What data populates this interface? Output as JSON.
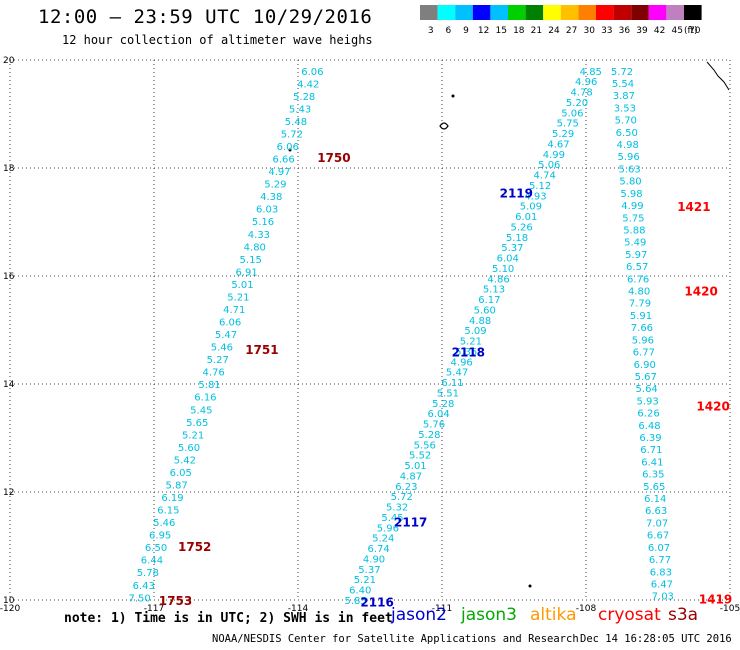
{
  "header": {
    "title": "12:00 – 23:59 UTC 10/29/2016",
    "subtitle": "12 hour collection of altimeter wave heighs"
  },
  "legend": {
    "colors": [
      "#7f7f7f",
      "#00ffff",
      "#00c0ff",
      "#0000ff",
      "#00c0ff",
      "#00d000",
      "#008000",
      "#ffff00",
      "#ffc000",
      "#ff8000",
      "#ff0000",
      "#c00000",
      "#800000",
      "#ff00ff",
      "#c080c0",
      "#000000"
    ],
    "labels": [
      "3",
      "6",
      "9",
      "12",
      "15",
      "18",
      "21",
      "24",
      "27",
      "30",
      "33",
      "36",
      "39",
      "42",
      "45",
      "70"
    ],
    "unit": "(ft)"
  },
  "footer": {
    "note": "note: 1) Time is in UTC; 2) SWH is in feet",
    "missions": [
      {
        "name": "jason2",
        "color": "#0000cc"
      },
      {
        "name": "jason3",
        "color": "#00aa00"
      },
      {
        "name": "altika",
        "color": "#ff9900"
      },
      {
        "name": "cryosat",
        "color": "#ff0000"
      },
      {
        "name": "s3a",
        "color": "#990000"
      }
    ],
    "credit": "NOAA/NESDIS Center for Satellite Applications and Research",
    "timestamp": "Dec 14 16:28:05 UTC 2016"
  },
  "chart_data": {
    "type": "scatter",
    "title": "12:00 – 23:59 UTC 10/29/2016",
    "subtitle": "12 hour collection of altimeter wave heighs",
    "xlim": [
      -120,
      -105
    ],
    "ylim": [
      10,
      20
    ],
    "x_ticks": [
      -120,
      -117,
      -114,
      -111,
      -108,
      -105
    ],
    "y_ticks": [
      10,
      12,
      14,
      16,
      18,
      20
    ],
    "x_tick_labels": [
      "-120",
      "-117",
      "-114",
      "-111",
      "-108",
      "-105"
    ],
    "y_tick_labels": [
      "10",
      "12",
      "14",
      "16",
      "18",
      "20"
    ],
    "grid": true,
    "value_color": "#00c0e0",
    "series": [
      {
        "mission": "s3a",
        "start": [
          -113.7,
          19.8
        ],
        "end": [
          -117.3,
          10.05
        ],
        "values": [
          "6.06",
          "4.42",
          "5.28",
          "5.43",
          "5.48",
          "5.72",
          "6.06",
          "6.66",
          "4.97",
          "5.29",
          "4.38",
          "6.03",
          "5.16",
          "4.33",
          "4.80",
          "5.15",
          "6.91",
          "5.01",
          "5.21",
          "4.71",
          "6.06",
          "5.47",
          "5.46",
          "5.27",
          "4.76",
          "5.81",
          "6.16",
          "5.45",
          "5.65",
          "5.21",
          "5.60",
          "5.42",
          "6.05",
          "5.87",
          "6.19",
          "6.15",
          "5.46",
          "6.95",
          "6.50",
          "6.44",
          "5.78",
          "6.43",
          "7.50"
        ],
        "passes": [
          {
            "id": "1750",
            "lon": -113.6,
            "lat": 18.2,
            "color": "#990000"
          },
          {
            "id": "1751",
            "lon": -115.1,
            "lat": 14.65,
            "color": "#990000"
          },
          {
            "id": "1752",
            "lon": -116.5,
            "lat": 11.0,
            "color": "#990000"
          },
          {
            "id": "1753",
            "lon": -116.9,
            "lat": 10.0,
            "color": "#990000"
          }
        ]
      },
      {
        "mission": "jason2",
        "start": [
          -107.9,
          19.8
        ],
        "end": [
          -112.8,
          10.0
        ],
        "values": [
          "4.85",
          "4.96",
          "4.78",
          "5.20",
          "5.06",
          "5.75",
          "5.29",
          "4.67",
          "4.99",
          "5.06",
          "4.74",
          "5.12",
          "4.93",
          "5.09",
          "6.01",
          "5.26",
          "5.18",
          "5.37",
          "6.04",
          "5.10",
          "4.86",
          "5.13",
          "6.17",
          "5.60",
          "4.88",
          "5.09",
          "5.21",
          "5.35",
          "4.96",
          "5.47",
          "6.11",
          "5.51",
          "5.28",
          "6.04",
          "5.76",
          "5.28",
          "5.56",
          "5.52",
          "5.01",
          "4.87",
          "6.23",
          "5.72",
          "5.32",
          "5.45",
          "5.96",
          "5.24",
          "6.74",
          "4.90",
          "5.37",
          "5.21",
          "6.40",
          "5.85"
        ],
        "passes": [
          {
            "id": "2119",
            "lon": -109.8,
            "lat": 17.55,
            "color": "#0000cc"
          },
          {
            "id": "2118",
            "lon": -110.8,
            "lat": 14.6,
            "color": "#0000cc"
          },
          {
            "id": "2117",
            "lon": -112.0,
            "lat": 11.45,
            "color": "#0000cc"
          },
          {
            "id": "2116",
            "lon": -112.7,
            "lat": 9.97,
            "color": "#0000cc"
          }
        ]
      },
      {
        "mission": "cryosat",
        "start": [
          -107.25,
          19.8
        ],
        "end": [
          -106.4,
          10.08
        ],
        "values": [
          "5.72",
          "5.54",
          "3.87",
          "3.53",
          "5.70",
          "6.50",
          "4.98",
          "5.96",
          "5.63",
          "5.80",
          "5.98",
          "4.99",
          "5.75",
          "5.88",
          "5.49",
          "5.97",
          "6.57",
          "6.76",
          "4.80",
          "7.79",
          "5.91",
          "7.66",
          "5.96",
          "6.77",
          "6.90",
          "5.67",
          "5.64",
          "5.93",
          "6.26",
          "6.48",
          "6.39",
          "6.71",
          "6.41",
          "6.35",
          "5.65",
          "6.14",
          "6.63",
          "7.07",
          "6.67",
          "6.07",
          "6.77",
          "6.83",
          "6.47",
          "7.03"
        ],
        "passes": [
          {
            "id": "1421",
            "lon": -106.1,
            "lat": 17.3,
            "color": "#ff0000"
          },
          {
            "id": "1420",
            "lon": -105.95,
            "lat": 15.73,
            "color": "#ff0000"
          },
          {
            "id": "1420",
            "lon": -105.7,
            "lat": 13.6,
            "color": "#ff0000"
          },
          {
            "id": "1419",
            "lon": -105.65,
            "lat": 10.03,
            "color": "#ff0000"
          }
        ]
      }
    ]
  }
}
